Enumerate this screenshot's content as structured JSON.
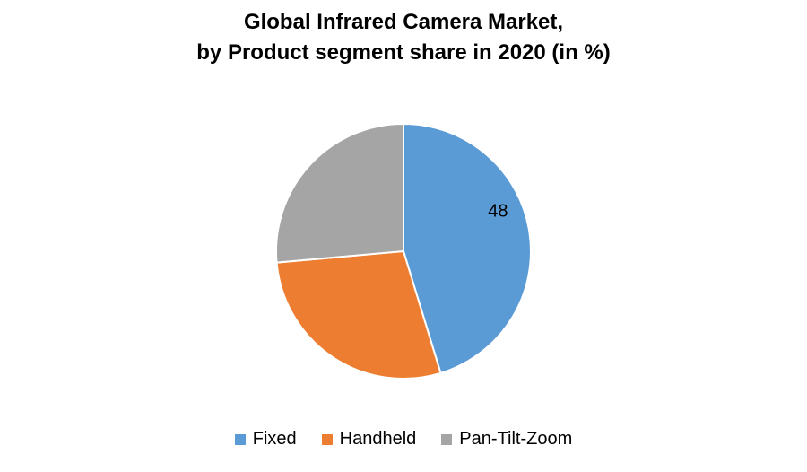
{
  "chart_data": {
    "type": "pie",
    "title": "Global Infrared Camera Market, by Product segment share in 2020 (in %)",
    "title_lines": [
      "Global Infrared Camera Market,",
      "by Product segment share in 2020 (in %)"
    ],
    "categories": [
      "Fixed",
      "Handheld",
      "Pan-Tilt-Zoom"
    ],
    "values": [
      48,
      30,
      28
    ],
    "colors": [
      "#5B9BD5",
      "#ED7D31",
      "#A5A5A5"
    ],
    "data_labels": [
      "48",
      "",
      ""
    ],
    "start_angle_deg": 0,
    "direction": "clockwise",
    "legend_position": "bottom",
    "xlabel": "",
    "ylabel": ""
  },
  "legend": {
    "items": [
      {
        "label": "Fixed",
        "color": "#5B9BD5"
      },
      {
        "label": "Handheld",
        "color": "#ED7D31"
      },
      {
        "label": "Pan-Tilt-Zoom",
        "color": "#A5A5A5"
      }
    ]
  }
}
